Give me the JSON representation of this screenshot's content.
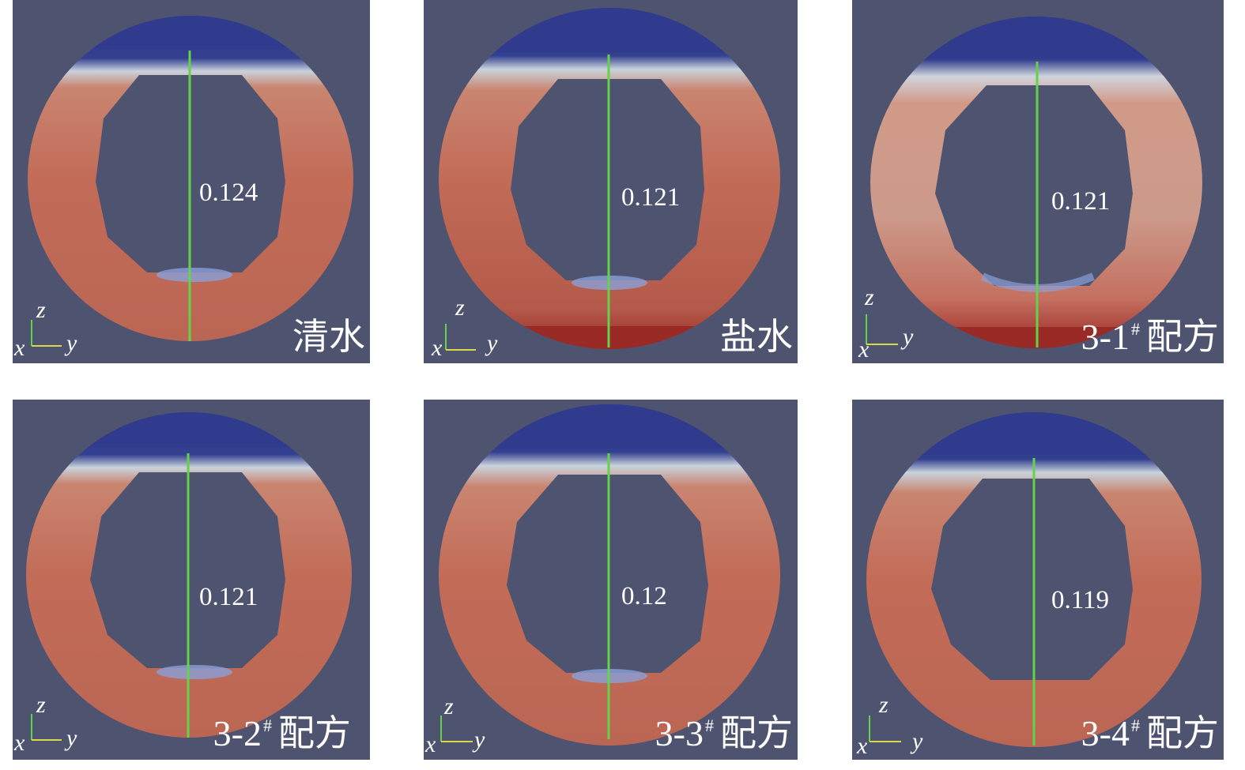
{
  "colors": {
    "background": "#4e5370",
    "annulus": "#c06a57",
    "water_top": "#2f3a8c",
    "deposit": "#9a2a26",
    "probe_line": "#63d44a"
  },
  "axis_triad": {
    "x": "x",
    "y": "y",
    "z": "z"
  },
  "panels": [
    {
      "value": "0.124",
      "name": "清水",
      "sup": "",
      "deposit": false,
      "bottom_band": true
    },
    {
      "value": "0.121",
      "name": "盐水",
      "sup": "",
      "deposit": true,
      "bottom_band": true
    },
    {
      "value": "0.121",
      "name": "3-1",
      "sup": "#",
      "suffix": "配方",
      "deposit": true,
      "bottom_band": true
    },
    {
      "value": "0.121",
      "name": "3-2",
      "sup": "#",
      "suffix": "配方",
      "deposit": false,
      "bottom_band": true
    },
    {
      "value": "0.12",
      "name": "3-3",
      "sup": "#",
      "suffix": "配方",
      "deposit": false,
      "bottom_band": true
    },
    {
      "value": "0.119",
      "name": "3-4",
      "sup": "#",
      "suffix": "配方",
      "deposit": false,
      "bottom_band": false
    }
  ]
}
